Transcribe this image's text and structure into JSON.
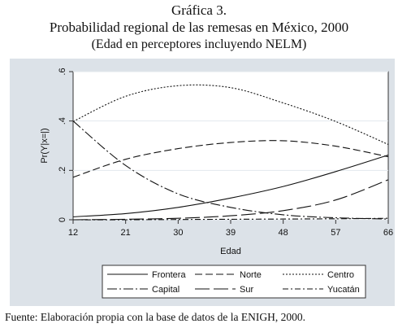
{
  "figure": {
    "label": "Gráfica 3.",
    "title": "Probabilidad regional de las remesas en México, 2000",
    "subtitle": "(Edad en perceptores incluyendo NELM)",
    "source": "Fuente: Elaboración propia con la base de datos de la ENIGH, 2000."
  },
  "chart_data": {
    "type": "line",
    "xlabel": "Edad",
    "ylabel": "Pr(Y|x=|)",
    "xlim": [
      12,
      66
    ],
    "ylim": [
      0,
      0.6
    ],
    "xticks": [
      "12",
      "21",
      "30",
      "39",
      "48",
      "57",
      "66"
    ],
    "yticks": [
      "0",
      ".2",
      ".4",
      ".6"
    ],
    "grid": true,
    "legend": "bottom",
    "x": [
      12,
      21,
      30,
      39,
      48,
      57,
      66
    ],
    "series": [
      {
        "name": "Frontera",
        "values": [
          0.012,
          0.025,
          0.05,
          0.088,
          0.135,
          0.195,
          0.262
        ],
        "dash": ""
      },
      {
        "name": "Norte",
        "values": [
          0.172,
          0.245,
          0.288,
          0.313,
          0.32,
          0.298,
          0.255
        ],
        "dash": "9,4"
      },
      {
        "name": "Centro",
        "values": [
          0.398,
          0.5,
          0.543,
          0.535,
          0.473,
          0.398,
          0.305
        ],
        "dash": "2,2"
      },
      {
        "name": "Capital",
        "values": [
          0.4,
          0.22,
          0.105,
          0.05,
          0.02,
          0.008,
          0.003
        ],
        "dash": "12,3,2,3"
      },
      {
        "name": "Sur",
        "values": [
          0.0,
          0.002,
          0.006,
          0.016,
          0.037,
          0.08,
          0.162
        ],
        "dash": "18,5"
      },
      {
        "name": "Yucatán",
        "values": [
          0.0,
          0.0,
          0.001,
          0.002,
          0.003,
          0.004,
          0.006
        ],
        "dash": "7,3,2,3"
      }
    ]
  }
}
